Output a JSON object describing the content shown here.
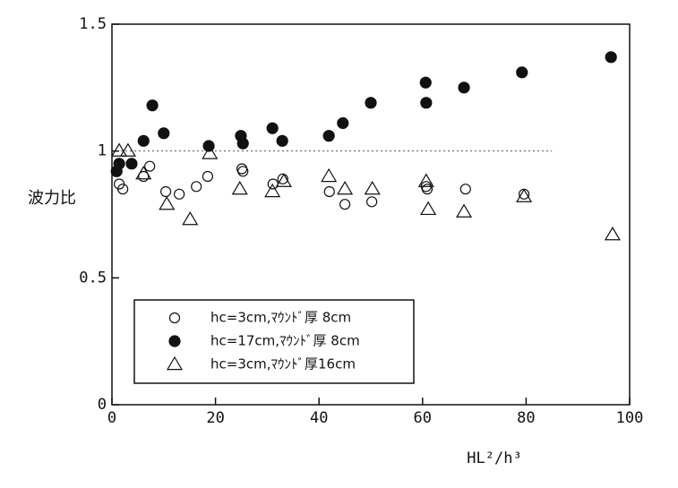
{
  "chart_data": {
    "type": "scatter",
    "ylabel": "波力比",
    "xlabel": "HL²/h³",
    "xlim": [
      0,
      100
    ],
    "xticks": [
      0,
      20,
      40,
      60,
      80,
      100
    ],
    "ylim": [
      0,
      1.5
    ],
    "yticks": [
      0,
      0.5,
      1,
      1.5
    ],
    "hline": 1,
    "legend": "lower left",
    "series": [
      {
        "name": "hc=3cm,ﾏｳﾝﾄﾞ厚 8cm",
        "color": "#111111",
        "marker": "circle-open",
        "x": [
          1.4,
          2.1,
          6.1,
          7.3,
          10.4,
          13,
          16.3,
          18.5,
          25.1,
          25.3,
          31.1,
          33,
          42,
          45,
          50.2,
          60.7,
          60.9,
          68.3,
          79.6
        ],
        "values": [
          0.87,
          0.85,
          0.9,
          0.94,
          0.84,
          0.83,
          0.86,
          0.9,
          0.93,
          0.92,
          0.87,
          0.89,
          0.84,
          0.79,
          0.8,
          0.86,
          0.85,
          0.85,
          0.83
        ]
      },
      {
        "name": "hc=17cm,ﾏｳﾝﾄﾞ厚 8cm",
        "color": "#111111",
        "marker": "circle",
        "x": [
          0.9,
          1.4,
          3.8,
          6.1,
          7.8,
          10,
          18.7,
          24.9,
          25.3,
          31,
          32.9,
          41.9,
          44.6,
          50,
          60.6,
          60.7,
          68,
          79.2,
          96.4
        ],
        "values": [
          0.92,
          0.95,
          0.95,
          1.04,
          1.18,
          1.07,
          1.02,
          1.06,
          1.03,
          1.09,
          1.04,
          1.06,
          1.11,
          1.19,
          1.27,
          1.19,
          1.25,
          1.31,
          1.37
        ]
      },
      {
        "name": "hc=3cm,ﾏｳﾝﾄﾞ厚16cm",
        "color": "#111111",
        "marker": "triangle-open",
        "x": [
          1.4,
          3.1,
          6.1,
          10.6,
          15.1,
          18.9,
          24.7,
          31,
          33.2,
          41.9,
          45,
          50.3,
          60.7,
          61.1,
          68,
          79.6,
          96.7
        ],
        "values": [
          1.0,
          1.0,
          0.91,
          0.79,
          0.73,
          0.99,
          0.85,
          0.84,
          0.88,
          0.9,
          0.85,
          0.85,
          0.88,
          0.77,
          0.76,
          0.82,
          0.67
        ]
      }
    ]
  }
}
